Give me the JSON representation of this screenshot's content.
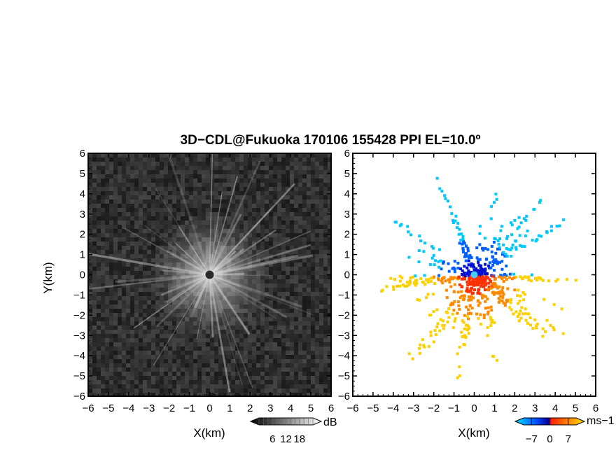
{
  "title": "3D−CDL@Fukuoka 170106 155428 PPI EL=10.0º",
  "chart_data": [
    {
      "type": "heatmap",
      "panel": "left",
      "quantity": "reflectivity (dB)",
      "xlabel": "X(km)",
      "ylabel": "Y(km)",
      "xlim": [
        -6,
        6
      ],
      "ylim": [
        -6,
        6
      ],
      "xticks": [
        "−6",
        "−5",
        "−4",
        "−3",
        "−2",
        "−1",
        "0",
        "1",
        "2",
        "3",
        "4",
        "5",
        "6"
      ],
      "yticks": [
        "−6",
        "−5",
        "−4",
        "−3",
        "−2",
        "−1",
        "0",
        "1",
        "2",
        "3",
        "4",
        "5",
        "6"
      ],
      "colorbar": {
        "unit": "dB",
        "ticks": [
          "6",
          "12",
          "18"
        ],
        "range": [
          0,
          24
        ],
        "palette": "grayscale"
      },
      "pattern": "radial speckle centered at radar origin (0,0), brightest within ~2 km"
    },
    {
      "type": "heatmap",
      "panel": "right",
      "quantity": "Doppler velocity (ms−1)",
      "xlabel": "X(km)",
      "xlim": [
        -6,
        6
      ],
      "ylim": [
        -6,
        6
      ],
      "xticks": [
        "−6",
        "−5",
        "−4",
        "−3",
        "−2",
        "−1",
        "0",
        "1",
        "2",
        "3",
        "4",
        "5",
        "6"
      ],
      "yticks": [
        "−6",
        "−5",
        "−4",
        "−3",
        "−2",
        "−1",
        "0",
        "1",
        "2",
        "3",
        "4",
        "5",
        "6"
      ],
      "colorbar": {
        "unit": "ms−1",
        "ticks": [
          "−7",
          "0",
          "7"
        ],
        "range": [
          -10,
          10
        ],
        "colors": [
          "#00e0ff",
          "#0050ff",
          "#0000a0",
          "#ff2000",
          "#ff8000",
          "#ffe000"
        ]
      },
      "pattern": "negative velocities (blue/cyan) north of origin, positive (red/orange/yellow) south"
    }
  ]
}
